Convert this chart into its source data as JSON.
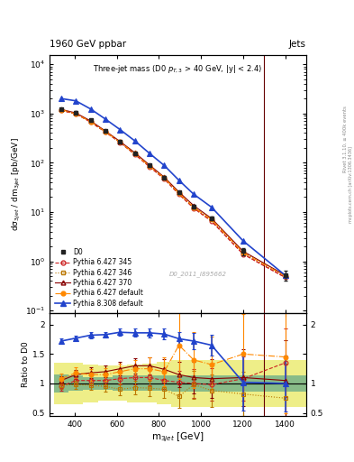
{
  "title_top": "1960 GeV ppbar",
  "title_top_right": "Jets",
  "plot_title": "Three-jet mass (D0 p$_{T,3}$ > 40 GeV, |y| < 2.4)",
  "xlabel": "m_3jet [GeV]",
  "ylabel_main": "dσ_3jet / dm_3jet [pb/GeV]",
  "ylabel_ratio": "Ratio to D0",
  "watermark": "D0_2011_I895662",
  "right_label1": "Rivet 3.1.10, ≥ 400k events",
  "right_label2": "mcplots.cern.ch [arXiv:1306.3436]",
  "xbins": [
    300,
    370,
    440,
    510,
    580,
    650,
    720,
    790,
    860,
    930,
    1000,
    1100,
    1300,
    1500
  ],
  "xcenters": [
    335,
    405,
    475,
    545,
    615,
    685,
    755,
    825,
    895,
    965,
    1050,
    1200,
    1400
  ],
  "d0_y": [
    1200,
    1050,
    720,
    440,
    270,
    155,
    88,
    50,
    25,
    13,
    7.5,
    1.6,
    0.52
  ],
  "d0_yerr": [
    55,
    48,
    32,
    20,
    13,
    7,
    4.5,
    2.8,
    1.8,
    1.0,
    0.65,
    0.28,
    0.12
  ],
  "py345_y": [
    1150,
    980,
    670,
    420,
    258,
    148,
    83,
    47,
    23,
    12,
    6.5,
    1.4,
    0.47
  ],
  "py346_y": [
    1170,
    990,
    685,
    428,
    262,
    152,
    86,
    49,
    24,
    12.5,
    7.0,
    1.5,
    0.5
  ],
  "py370_y": [
    1210,
    1020,
    705,
    442,
    270,
    160,
    90,
    51,
    25.5,
    13.5,
    7.4,
    1.6,
    0.52
  ],
  "pydef_y": [
    1190,
    985,
    678,
    428,
    262,
    152,
    86,
    49,
    24,
    12.5,
    7.0,
    1.5,
    0.5
  ],
  "py8def_y": [
    2000,
    1800,
    1230,
    770,
    470,
    278,
    155,
    88,
    44,
    23,
    12.5,
    2.6,
    0.52
  ],
  "ratio_py345": [
    0.95,
    1.05,
    1.05,
    1.05,
    1.08,
    1.1,
    1.1,
    1.05,
    1.02,
    1.0,
    0.98,
    1.08,
    1.35
  ],
  "ratio_py346": [
    0.97,
    0.98,
    0.97,
    0.95,
    0.9,
    0.93,
    0.92,
    0.9,
    0.78,
    0.98,
    0.88,
    0.82,
    0.75
  ],
  "ratio_py370": [
    1.05,
    1.15,
    1.18,
    1.2,
    1.25,
    1.3,
    1.3,
    1.24,
    1.15,
    1.1,
    1.08,
    1.1,
    1.05
  ],
  "ratio_pydef": [
    1.08,
    1.18,
    1.15,
    1.15,
    1.2,
    1.25,
    1.25,
    1.2,
    1.65,
    1.4,
    1.32,
    1.5,
    1.45
  ],
  "ratio_py8def": [
    1.72,
    1.77,
    1.82,
    1.83,
    1.87,
    1.86,
    1.86,
    1.84,
    1.76,
    1.72,
    1.65,
    1.02,
    1.0
  ],
  "ratio_err_py345": [
    0.07,
    0.07,
    0.08,
    0.09,
    0.1,
    0.11,
    0.13,
    0.15,
    0.2,
    0.24,
    0.28,
    0.38,
    0.58
  ],
  "ratio_err_py346": [
    0.07,
    0.07,
    0.08,
    0.09,
    0.1,
    0.11,
    0.13,
    0.15,
    0.2,
    0.24,
    0.28,
    0.38,
    0.58
  ],
  "ratio_err_py370": [
    0.07,
    0.08,
    0.09,
    0.1,
    0.11,
    0.13,
    0.15,
    0.17,
    0.21,
    0.27,
    0.33,
    0.48,
    0.68
  ],
  "ratio_err_pydef": [
    0.09,
    0.09,
    0.1,
    0.11,
    0.13,
    0.15,
    0.19,
    0.24,
    0.58,
    0.48,
    0.48,
    0.68,
    0.95
  ],
  "ratio_err_py8def": [
    0.04,
    0.04,
    0.05,
    0.05,
    0.06,
    0.07,
    0.08,
    0.09,
    0.11,
    0.14,
    0.17,
    0.48,
    0.48
  ],
  "band_yellow_lo": [
    0.65,
    0.65,
    0.68,
    0.7,
    0.7,
    0.68,
    0.67,
    0.64,
    0.6,
    0.6,
    0.6,
    0.6,
    0.6
  ],
  "band_yellow_hi": [
    1.35,
    1.35,
    1.32,
    1.3,
    1.3,
    1.32,
    1.33,
    1.36,
    1.4,
    1.4,
    1.4,
    1.4,
    1.4
  ],
  "band_green_lo": [
    0.85,
    0.87,
    0.89,
    0.89,
    0.87,
    0.87,
    0.87,
    0.87,
    0.86,
    0.86,
    0.86,
    0.86,
    0.86
  ],
  "band_green_hi": [
    1.15,
    1.13,
    1.11,
    1.11,
    1.13,
    1.13,
    1.13,
    1.13,
    1.14,
    1.14,
    1.14,
    1.14,
    1.14
  ],
  "xlim": [
    280,
    1500
  ],
  "ylim_main": [
    0.09,
    15000
  ],
  "ylim_ratio": [
    0.45,
    2.2
  ],
  "color_d0": "#222222",
  "color_py345": "#cc2222",
  "color_py346": "#bb7700",
  "color_py370": "#880000",
  "color_pydef": "#ff8800",
  "color_py8def": "#2244cc",
  "color_yellow": "#eeee88",
  "color_green": "#88bb88",
  "color_vline": "#660000"
}
